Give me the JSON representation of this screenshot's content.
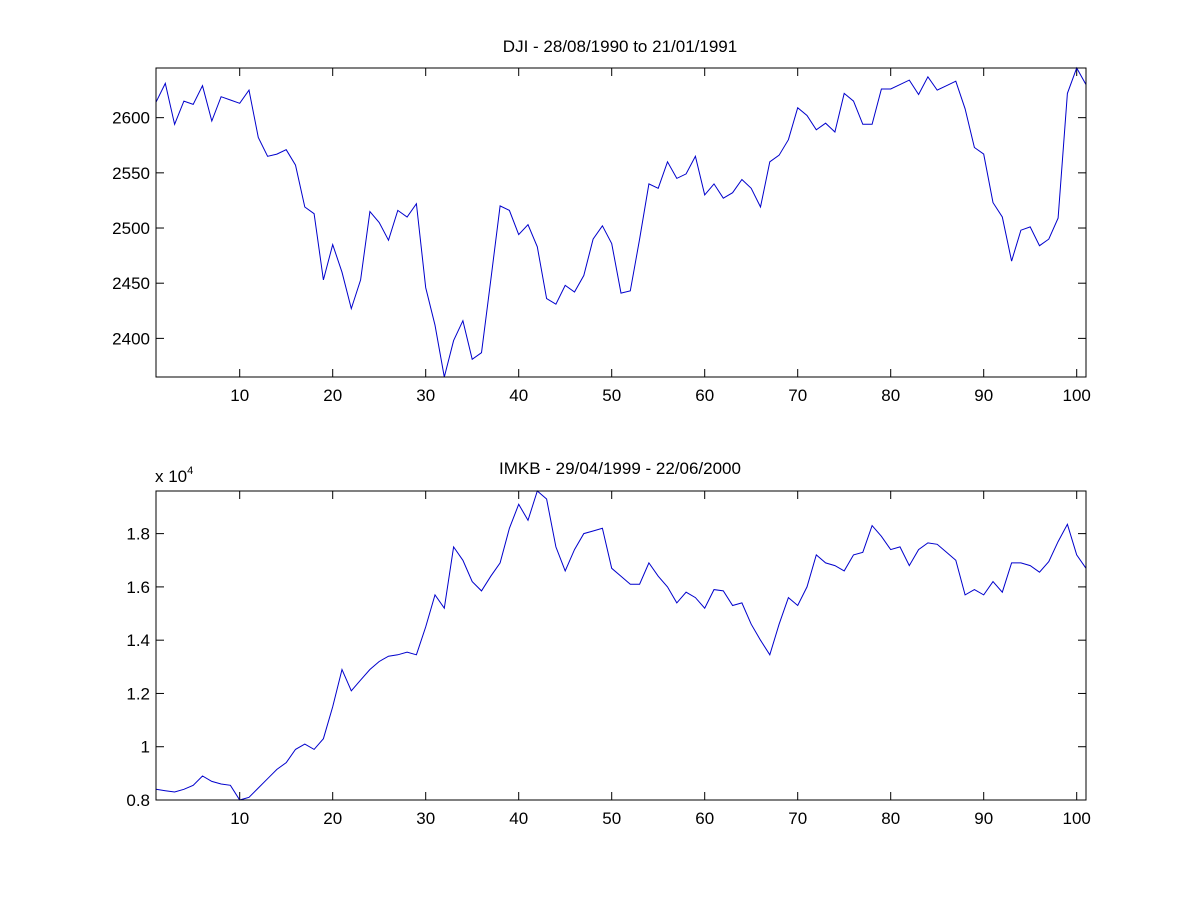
{
  "chart_data": [
    {
      "type": "line",
      "title": "DJI - 28/08/1990 to 21/01/1991",
      "xlabel": "",
      "ylabel": "",
      "xlim": [
        1,
        101
      ],
      "ylim": [
        2365,
        2645
      ],
      "xticks": [
        10,
        20,
        30,
        40,
        50,
        60,
        70,
        80,
        90,
        100
      ],
      "yticks": [
        2400,
        2450,
        2500,
        2550,
        2600
      ],
      "exponent_label": "",
      "line_color": "#0000cc",
      "x": [
        1,
        2,
        3,
        4,
        5,
        6,
        7,
        8,
        9,
        10,
        11,
        12,
        13,
        14,
        15,
        16,
        17,
        18,
        19,
        20,
        21,
        22,
        23,
        24,
        25,
        26,
        27,
        28,
        29,
        30,
        31,
        32,
        33,
        34,
        35,
        36,
        37,
        38,
        39,
        40,
        41,
        42,
        43,
        44,
        45,
        46,
        47,
        48,
        49,
        50,
        51,
        52,
        53,
        54,
        55,
        56,
        57,
        58,
        59,
        60,
        61,
        62,
        63,
        64,
        65,
        66,
        67,
        68,
        69,
        70,
        71,
        72,
        73,
        74,
        75,
        76,
        77,
        78,
        79,
        80,
        81,
        82,
        83,
        84,
        85,
        86,
        87,
        88,
        89,
        90,
        91,
        92,
        93,
        94,
        95,
        96,
        97,
        98,
        99,
        100,
        101
      ],
      "values": [
        2614,
        2631,
        2594,
        2615,
        2612,
        2629,
        2597,
        2619,
        2616,
        2613,
        2625,
        2582,
        2565,
        2567,
        2571,
        2557,
        2519,
        2513,
        2453,
        2485,
        2460,
        2427,
        2453,
        2515,
        2505,
        2489,
        2516,
        2510,
        2522,
        2446,
        2412,
        2365,
        2398,
        2416,
        2381,
        2387,
        2453,
        2520,
        2516,
        2494,
        2503,
        2483,
        2436,
        2431,
        2448,
        2442,
        2457,
        2490,
        2502,
        2486,
        2441,
        2443,
        2490,
        2540,
        2536,
        2560,
        2545,
        2549,
        2565,
        2530,
        2540,
        2527,
        2532,
        2544,
        2536,
        2519,
        2560,
        2566,
        2580,
        2609,
        2602,
        2589,
        2595,
        2587,
        2622,
        2615,
        2594,
        2594,
        2626,
        2626,
        2630,
        2634,
        2621,
        2637,
        2625,
        2629,
        2633,
        2608,
        2573,
        2567,
        2523,
        2510,
        2470,
        2498,
        2501,
        2484,
        2490,
        2509,
        2622,
        2645,
        2630
      ]
    },
    {
      "type": "line",
      "title": "IMKB - 29/04/1999 - 22/06/2000",
      "xlabel": "",
      "ylabel": "",
      "xlim": [
        1,
        101
      ],
      "ylim": [
        0.8,
        1.96
      ],
      "xticks": [
        10,
        20,
        30,
        40,
        50,
        60,
        70,
        80,
        90,
        100
      ],
      "yticks": [
        0.8,
        1,
        1.2,
        1.4,
        1.6,
        1.8
      ],
      "ytick_labels": [
        "0.8",
        "1",
        "1.2",
        "1.4",
        "1.6",
        "1.8"
      ],
      "exponent_label": "x 10",
      "exponent_power": "4",
      "line_color": "#0000cc",
      "x": [
        1,
        2,
        3,
        4,
        5,
        6,
        7,
        8,
        9,
        10,
        11,
        12,
        13,
        14,
        15,
        16,
        17,
        18,
        19,
        20,
        21,
        22,
        23,
        24,
        25,
        26,
        27,
        28,
        29,
        30,
        31,
        32,
        33,
        34,
        35,
        36,
        37,
        38,
        39,
        40,
        41,
        42,
        43,
        44,
        45,
        46,
        47,
        48,
        49,
        50,
        51,
        52,
        53,
        54,
        55,
        56,
        57,
        58,
        59,
        60,
        61,
        62,
        63,
        64,
        65,
        66,
        67,
        68,
        69,
        70,
        71,
        72,
        73,
        74,
        75,
        76,
        77,
        78,
        79,
        80,
        81,
        82,
        83,
        84,
        85,
        86,
        87,
        88,
        89,
        90,
        91,
        92,
        93,
        94,
        95,
        96,
        97,
        98,
        99,
        100,
        101
      ],
      "values": [
        0.84,
        0.835,
        0.83,
        0.84,
        0.855,
        0.89,
        0.87,
        0.86,
        0.855,
        0.8,
        0.81,
        0.845,
        0.88,
        0.915,
        0.94,
        0.99,
        1.01,
        0.99,
        1.03,
        1.15,
        1.29,
        1.21,
        1.25,
        1.29,
        1.32,
        1.34,
        1.345,
        1.355,
        1.345,
        1.45,
        1.57,
        1.52,
        1.75,
        1.7,
        1.62,
        1.585,
        1.64,
        1.69,
        1.82,
        1.91,
        1.85,
        1.96,
        1.93,
        1.75,
        1.66,
        1.74,
        1.8,
        1.81,
        1.82,
        1.67,
        1.64,
        1.61,
        1.61,
        1.69,
        1.64,
        1.6,
        1.54,
        1.58,
        1.56,
        1.52,
        1.59,
        1.585,
        1.53,
        1.54,
        1.46,
        1.4,
        1.345,
        1.46,
        1.56,
        1.53,
        1.6,
        1.72,
        1.69,
        1.68,
        1.66,
        1.72,
        1.73,
        1.83,
        1.79,
        1.74,
        1.75,
        1.68,
        1.74,
        1.765,
        1.76,
        1.73,
        1.7,
        1.57,
        1.59,
        1.57,
        1.62,
        1.58,
        1.69,
        1.69,
        1.68,
        1.655,
        1.695,
        1.77,
        1.835,
        1.72,
        1.67
      ]
    }
  ]
}
